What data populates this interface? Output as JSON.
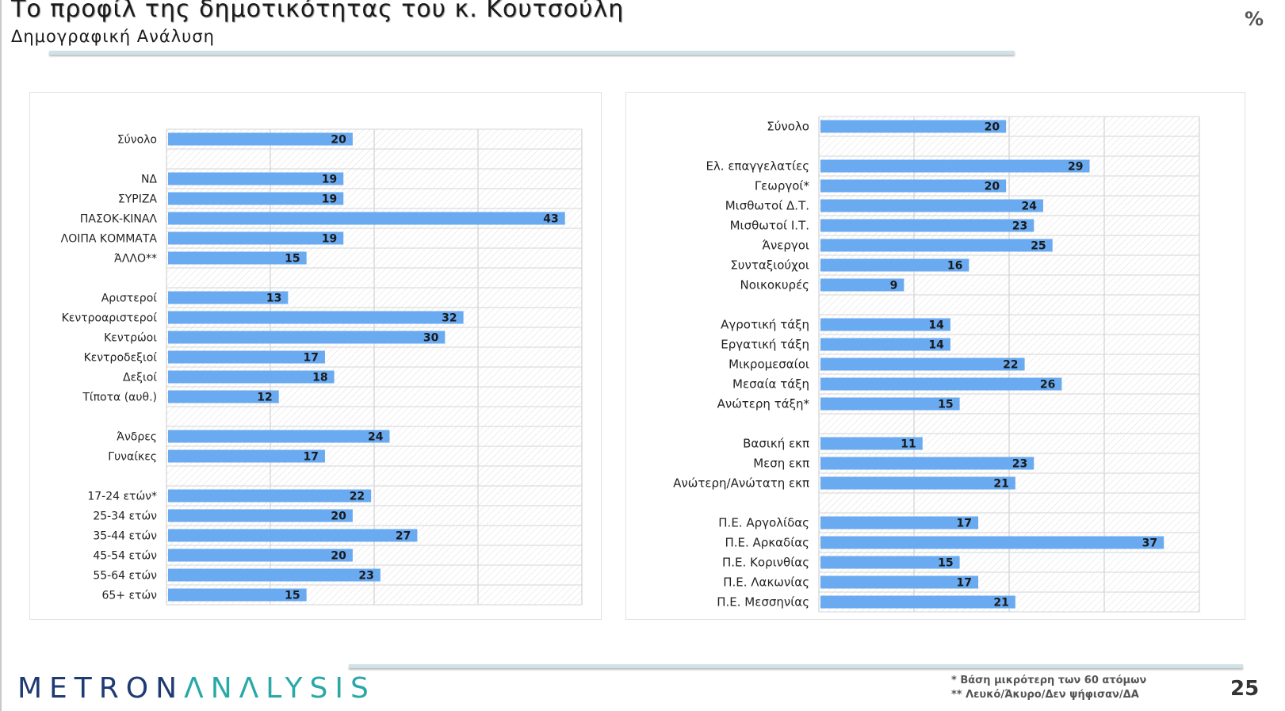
{
  "title": "Το προφίλ της δημοτικότητας του κ. Κουτσούλη",
  "subtitle": "Δημογραφική Ανάλυση",
  "unit_label": "%",
  "footnotes": [
    "*  Βάση μικρότερη των 60 ατόμων",
    "** Λευκό/Άκυρο/Δεν ψήφισαν/ΔΑ"
  ],
  "page_number": "25",
  "logo": {
    "part1": "METRON",
    "part2": "ΛNΛLYSIS"
  },
  "colors": {
    "bar": "#6aaaf0",
    "grid": "#c9c9c9",
    "hatch": "#dedede"
  },
  "chart_data": [
    {
      "type": "bar",
      "orientation": "horizontal",
      "xlim": [
        0,
        45
      ],
      "grid": true,
      "categories": [
        "Σύνολο",
        "",
        "ΝΔ",
        "ΣΥΡΙΖΑ",
        "ΠΑΣΟΚ-ΚΙΝΑΛ",
        "ΛΟΙΠΑ ΚΟΜΜΑΤΑ",
        "ΆΛΛΟ**",
        "",
        "Αριστεροί",
        "Κεντροαριστεροί",
        "Κεντρώοι",
        "Κεντροδεξιοί",
        "Δεξιοί",
        "Τίποτα (αυθ.)",
        "",
        "Άνδρες",
        "Γυναίκες",
        "",
        "17-24 ετών*",
        "25-34 ετών",
        "35-44 ετών",
        "45-54 ετών",
        "55-64 ετών",
        "65+ ετών"
      ],
      "values": [
        20,
        null,
        19,
        19,
        43,
        19,
        15,
        null,
        13,
        32,
        30,
        17,
        18,
        12,
        null,
        24,
        17,
        null,
        22,
        20,
        27,
        20,
        23,
        15
      ]
    },
    {
      "type": "bar",
      "orientation": "horizontal",
      "xlim": [
        0,
        41
      ],
      "grid": true,
      "categories": [
        "Σύνολο",
        "",
        "Ελ. επαγγελατίες",
        "Γεωργοί*",
        "Μισθωτοί Δ.Τ.",
        "Μισθωτοί Ι.Τ.",
        "Άνεργοι",
        "Συνταξιούχοι",
        "Νοικοκυρές",
        "",
        "Αγροτική τάξη",
        "Εργατική τάξη",
        "Μικρομεσαίοι",
        "Μεσαία τάξη",
        "Ανώτερη τάξη*",
        "",
        "Βασική εκπ",
        "Μεση εκπ",
        "Ανώτερη/Ανώτατη εκπ",
        "",
        "Π.Ε. Αργολίδας",
        "Π.Ε. Αρκαδίας",
        "Π.Ε. Κορινθίας",
        "Π.Ε. Λακωνίας",
        "Π.Ε. Μεσσηνίας"
      ],
      "values": [
        20,
        null,
        29,
        20,
        24,
        23,
        25,
        16,
        9,
        null,
        14,
        14,
        22,
        26,
        15,
        null,
        11,
        23,
        21,
        null,
        17,
        37,
        15,
        17,
        21
      ]
    }
  ]
}
